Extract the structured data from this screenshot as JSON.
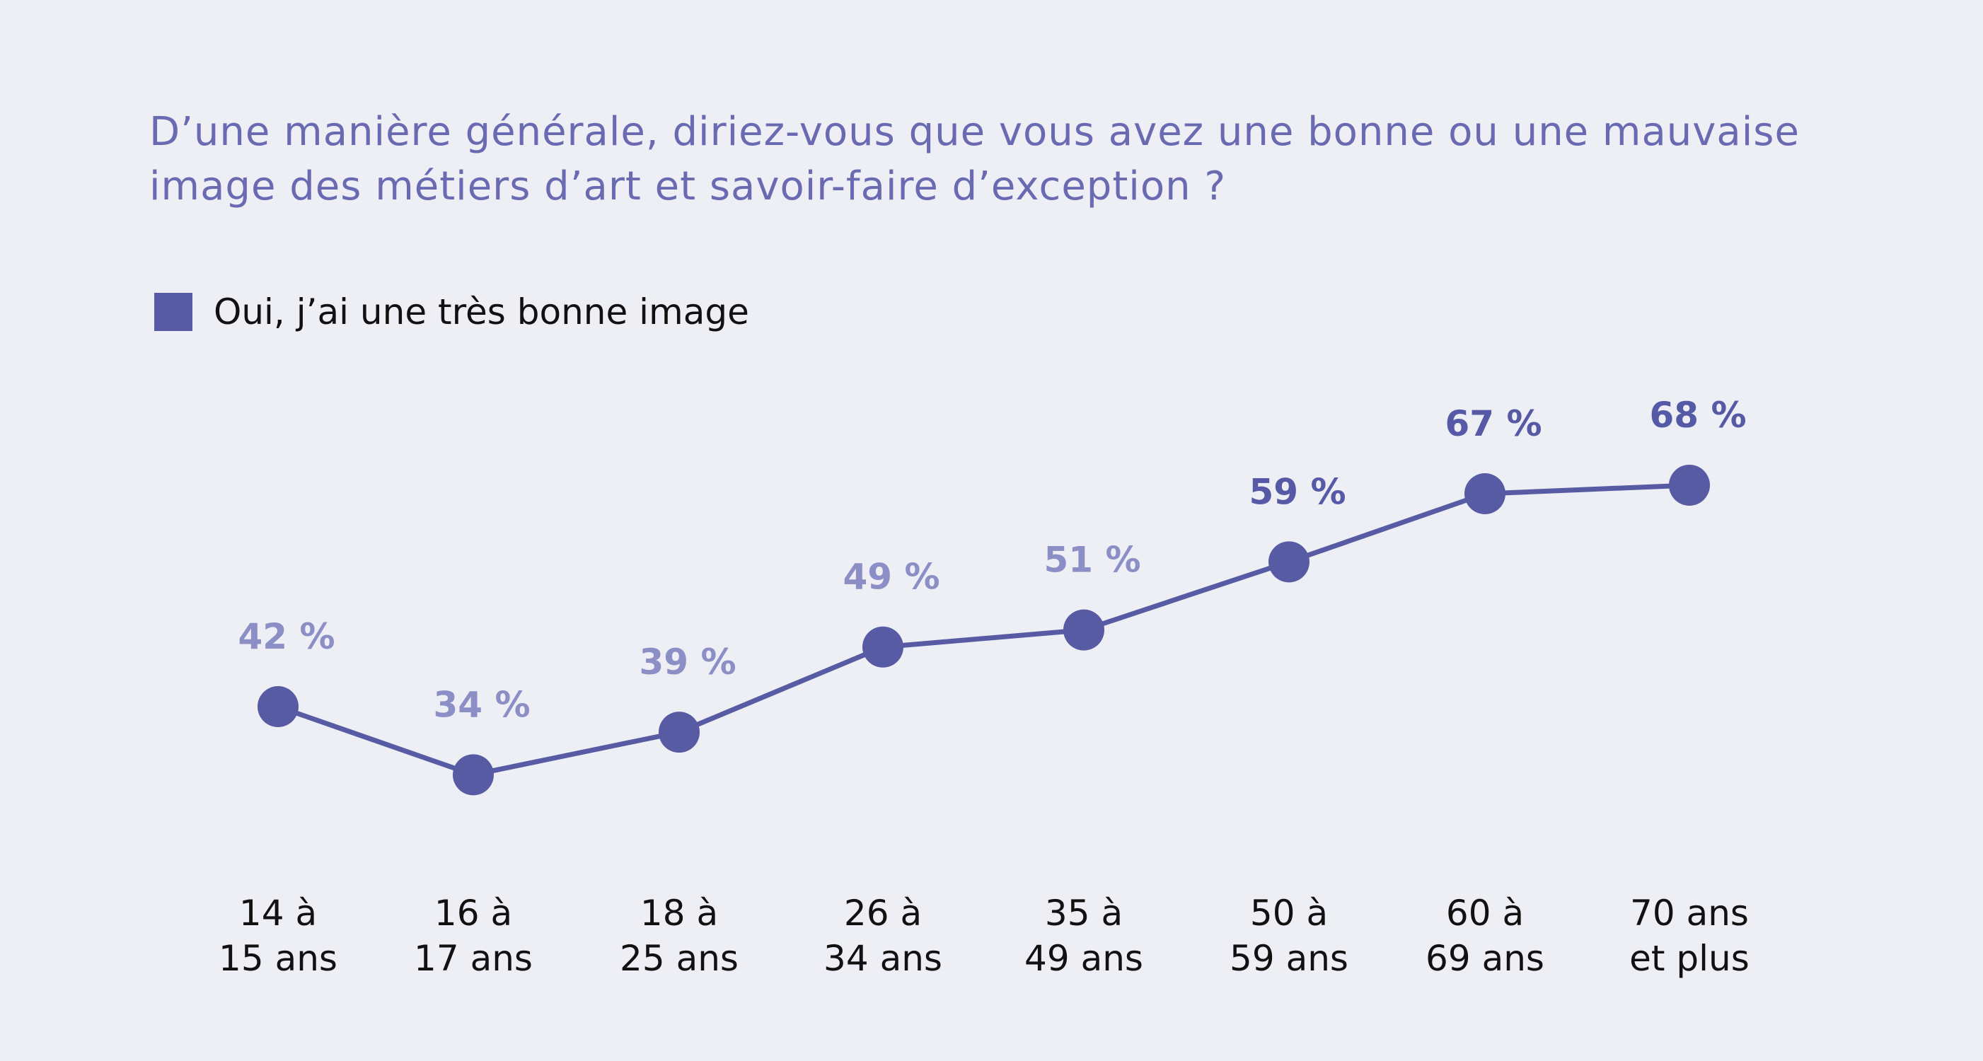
{
  "chart_data": {
    "type": "line",
    "title": "D’une manière générale, diriez-vous que vous avez une bonne ou une mauvaise image des métiers d’art et savoir-faire d’exception ?",
    "categories": [
      [
        "14 à",
        "15 ans"
      ],
      [
        "16 à",
        "17 ans"
      ],
      [
        "18 à",
        "25 ans"
      ],
      [
        "26 à",
        "34 ans"
      ],
      [
        "35 à",
        "49 ans"
      ],
      [
        "50 à",
        "59 ans"
      ],
      [
        "60 à",
        "69 ans"
      ],
      [
        "70 ans",
        "et plus"
      ]
    ],
    "series": [
      {
        "name": "Oui, j’ai une très bonne image",
        "values": [
          42,
          34,
          39,
          49,
          51,
          59,
          67,
          68
        ]
      }
    ],
    "data_labels": [
      "42 %",
      "34 %",
      "39 %",
      "49 %",
      "51 %",
      "59 %",
      "67 %",
      "68 %"
    ],
    "legend_position": "top-left",
    "grid": false,
    "colors": {
      "line": "#575ba3",
      "label_light": "#8c8fc5",
      "label_dark": "#565aa6",
      "title": "#6a6ab3"
    }
  }
}
